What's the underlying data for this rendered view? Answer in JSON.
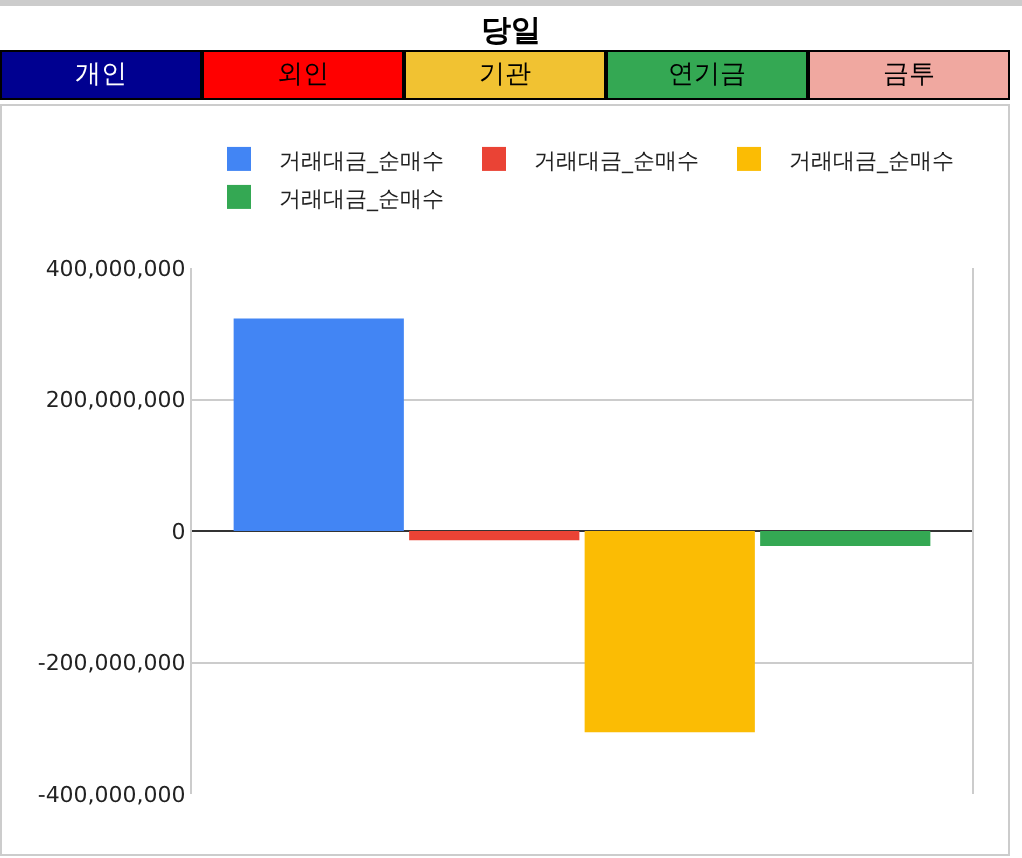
{
  "chart_data": {
    "type": "bar",
    "title": "당일",
    "annotations": [
      "개인",
      "외인",
      "기관",
      "연기금",
      "금투"
    ],
    "categories": [
      null
    ],
    "series": [
      {
        "name": "거래대금_순매수",
        "color": "#4285f4",
        "values": [
          323000000
        ]
      },
      {
        "name": "거래대금_순매수",
        "color": "#ea4335",
        "values": [
          -14000000
        ]
      },
      {
        "name": "거래대금_순매수",
        "color": "#fbbc04",
        "values": [
          -306000000
        ]
      },
      {
        "name": "거래대금_순매수",
        "color": "#34a853",
        "values": [
          -23000000
        ]
      }
    ],
    "ylim": [
      -400000000,
      400000000
    ],
    "yticks": [
      {
        "value": -400000000,
        "label": "-400,000,000"
      },
      {
        "value": -200000000,
        "label": "-200,000,000"
      },
      0,
      {
        "value": 200000000,
        "label": "200,000,000"
      },
      {
        "value": 400000000,
        "label": "400,000,000"
      }
    ],
    "grid": "y",
    "legend": "top",
    "tick_labels": "y"
  }
}
